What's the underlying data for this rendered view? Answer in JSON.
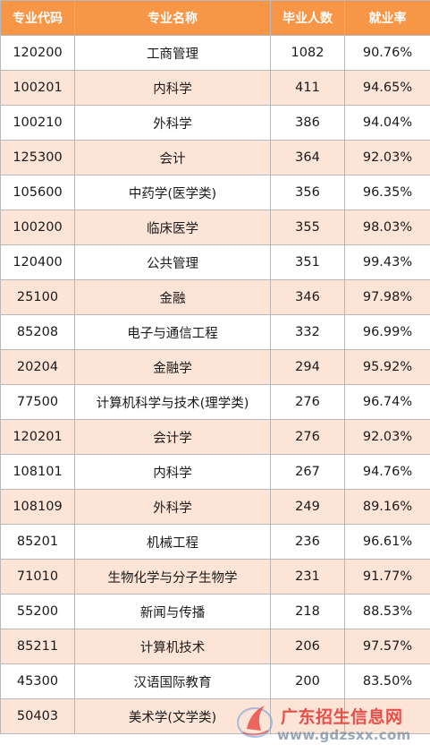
{
  "table": {
    "headers": [
      "专业代码",
      "专业名称",
      "毕业人数",
      "就业率"
    ],
    "rows": [
      [
        "120200",
        "工商管理",
        "1082",
        "90.76%"
      ],
      [
        "100201",
        "内科学",
        "411",
        "94.65%"
      ],
      [
        "100210",
        "外科学",
        "386",
        "94.04%"
      ],
      [
        "125300",
        "会计",
        "364",
        "92.03%"
      ],
      [
        "105600",
        "中药学(医学类)",
        "356",
        "96.35%"
      ],
      [
        "100200",
        "临床医学",
        "355",
        "98.03%"
      ],
      [
        "120400",
        "公共管理",
        "351",
        "99.43%"
      ],
      [
        "25100",
        "金融",
        "346",
        "97.98%"
      ],
      [
        "85208",
        "电子与通信工程",
        "332",
        "96.99%"
      ],
      [
        "20204",
        "金融学",
        "294",
        "95.92%"
      ],
      [
        "77500",
        "计算机科学与技术(理学类)",
        "276",
        "96.74%"
      ],
      [
        "120201",
        "会计学",
        "276",
        "92.03%"
      ],
      [
        "108101",
        "内科学",
        "267",
        "94.76%"
      ],
      [
        "108109",
        "外科学",
        "249",
        "89.16%"
      ],
      [
        "85201",
        "机械工程",
        "236",
        "96.61%"
      ],
      [
        "71010",
        "生物化学与分子生物学",
        "231",
        "91.77%"
      ],
      [
        "55200",
        "新闻与传播",
        "218",
        "88.53%"
      ],
      [
        "85211",
        "计算机技术",
        "206",
        "97.57%"
      ],
      [
        "45300",
        "汉语国际教育",
        "200",
        "83.50%"
      ],
      [
        "50403",
        "美术学(文学类)",
        "",
        ""
      ]
    ]
  },
  "watermark": {
    "title": "广东招生信息网",
    "url": "www.gdzsxx.com"
  },
  "colors": {
    "header_bg": "#f79646",
    "even_row_bg": "#fce4d6",
    "odd_row_bg": "#ffffff",
    "watermark_red": "#e53935"
  }
}
